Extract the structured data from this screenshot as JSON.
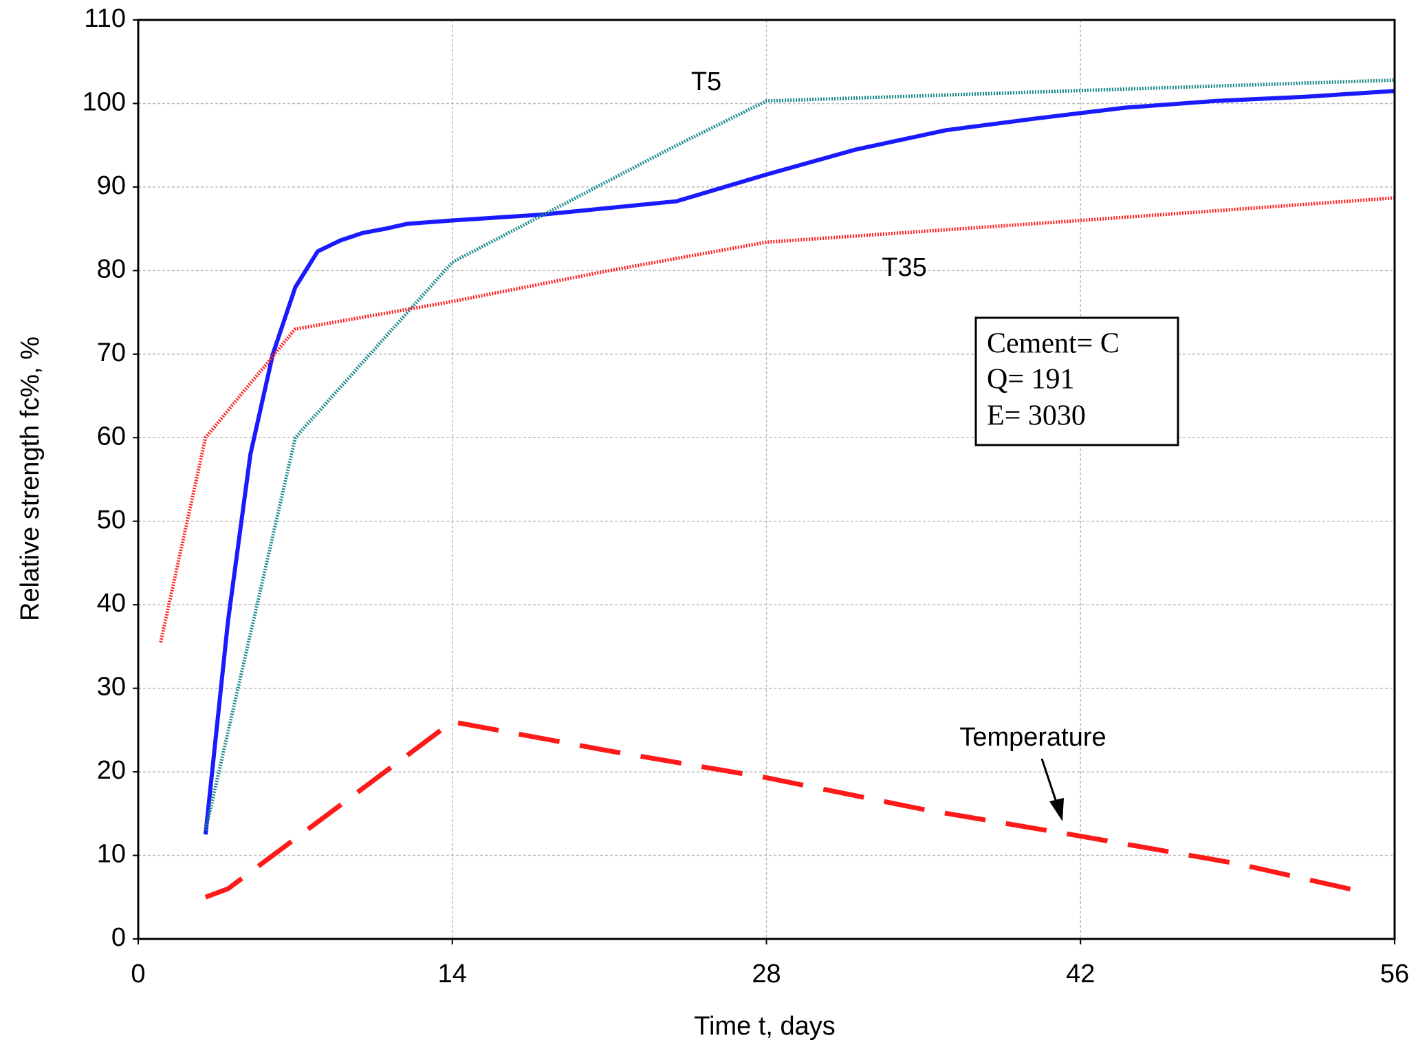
{
  "chart_data": {
    "type": "line",
    "x_label": "Time t, days",
    "y_label": "Relative strength fc%, %",
    "xlim": [
      0,
      56
    ],
    "xticks": [
      0,
      14,
      28,
      42,
      56
    ],
    "ylim": [
      0,
      110
    ],
    "yticks": [
      0,
      10,
      20,
      30,
      40,
      50,
      60,
      70,
      80,
      90,
      100,
      110
    ],
    "grid": true,
    "series": [
      {
        "color": "#1a1aff",
        "linestyle": "solid",
        "x": [
          3,
          4,
          5,
          6,
          7,
          8,
          9,
          10,
          11,
          12,
          14,
          18,
          24,
          28,
          32,
          36,
          40,
          44,
          48,
          52,
          56
        ],
        "values": [
          12.5,
          38,
          58,
          70,
          78,
          82.3,
          83.6,
          84.5,
          85,
          85.6,
          86,
          86.7,
          88.3,
          91.5,
          94.5,
          96.8,
          98.2,
          99.5,
          100.3,
          100.8,
          101.5
        ]
      },
      {
        "name": "T5",
        "color": "#1a8a8a",
        "linestyle": "dotted",
        "x": [
          3,
          7,
          12,
          14,
          24,
          28,
          56
        ],
        "values": [
          13,
          60,
          75,
          81,
          95,
          100.3,
          102.8
        ]
      },
      {
        "name": "T35",
        "color": "#ff2020",
        "linestyle": "dotted",
        "x": [
          1,
          3,
          7,
          14,
          21,
          28,
          42,
          56
        ],
        "values": [
          35.5,
          60,
          73,
          76.3,
          80,
          83.4,
          86,
          88.7
        ]
      },
      {
        "name": "Temperature",
        "color": "#ff1a1a",
        "linestyle": "dashed",
        "x": [
          3,
          4,
          6,
          7,
          9,
          11,
          14,
          17,
          21,
          28,
          35,
          42,
          49,
          54.8
        ],
        "values": [
          5,
          6,
          10,
          12,
          16,
          20,
          26,
          24.5,
          22.5,
          19.3,
          15.5,
          12.3,
          9,
          5.5
        ]
      }
    ],
    "annotations": [
      "Cement= C",
      "Q= 191",
      "E= 3030"
    ]
  }
}
